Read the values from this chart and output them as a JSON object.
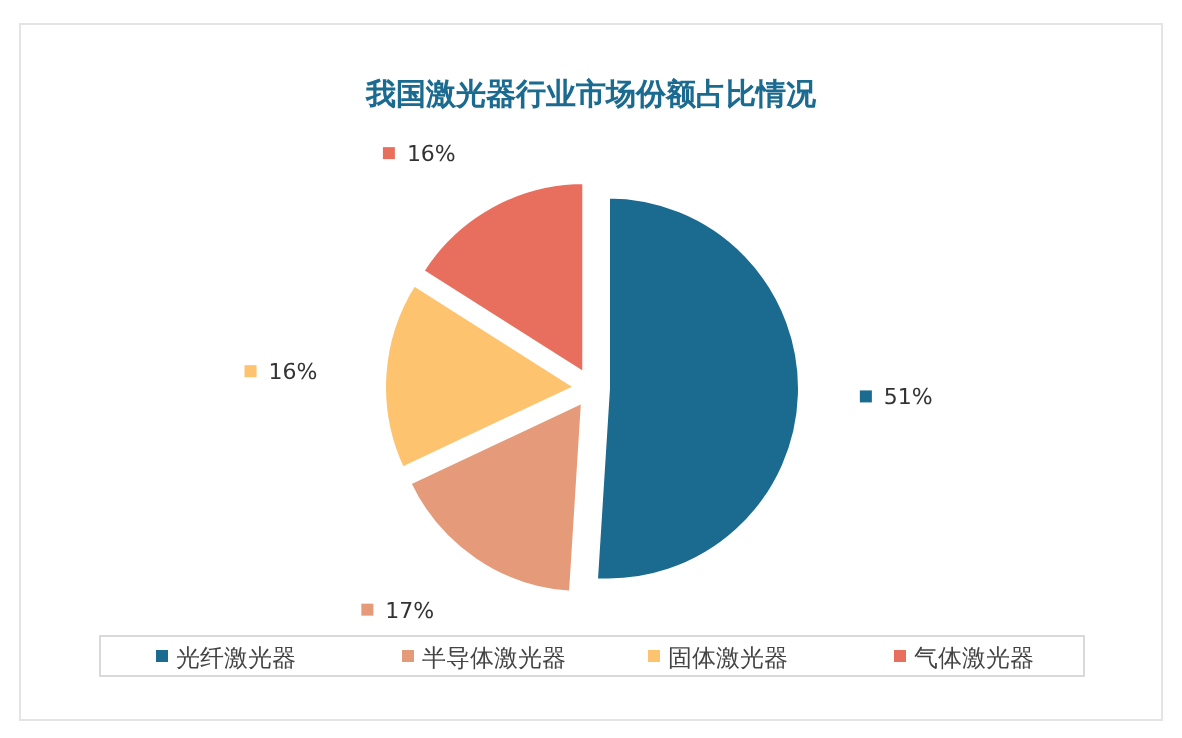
{
  "chart_data": {
    "type": "pie",
    "title": "我国激光器行业市场份额占比情况",
    "categories": [
      "光纤激光器",
      "半导体激光器",
      "固体激光器",
      "气体激光器"
    ],
    "values": [
      51,
      17,
      16,
      16
    ],
    "value_labels": [
      "51%",
      "17%",
      "16%",
      "16%"
    ],
    "colors": [
      "#1b6a8f",
      "#e59a7a",
      "#fdc36f",
      "#e86f5e"
    ],
    "legend": "bottom"
  }
}
